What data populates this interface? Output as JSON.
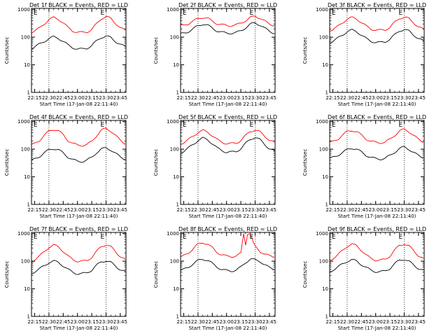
{
  "figure": {
    "colors": {
      "events": "#000000",
      "lld": "#ff0000",
      "axes": "#000000",
      "background": "#ffffff"
    },
    "panel_layout": "3x3 grid",
    "common": {
      "ylabel": "Counts/sec",
      "xlabel": "Start Time (17-Jan-08 22:11:40)",
      "xticks": [
        "22:15",
        "22:30",
        "22:45",
        "23:00",
        "23:15",
        "23:30",
        "23:45"
      ],
      "yticks": [
        "1",
        "10",
        "100",
        "1000"
      ],
      "xlim": [
        "22:11:40",
        "23:51:00"
      ],
      "ylim": [
        1,
        1100
      ],
      "yscale": "log",
      "dotted_vertical_lines": [
        "22:30",
        "23:30"
      ],
      "markers": [
        "E",
        "E"
      ]
    }
  },
  "chart_data": [
    {
      "type": "line",
      "panel": "1f",
      "title": "Det 1f BLACK = Events, RED = LLD",
      "series": [
        {
          "name": "BLACK = Events",
          "color": "#000000",
          "x": [
            "22:12",
            "22:15",
            "22:20",
            "22:25",
            "22:30",
            "22:35",
            "22:40",
            "22:45",
            "22:50",
            "22:55",
            "23:00",
            "23:05",
            "23:10",
            "23:15",
            "23:20",
            "23:25",
            "23:30",
            "23:35",
            "23:40",
            "23:45",
            "23:50"
          ],
          "values": [
            38,
            45,
            55,
            70,
            90,
            102,
            92,
            70,
            52,
            42,
            37,
            37,
            40,
            50,
            72,
            98,
            110,
            95,
            70,
            55,
            45
          ]
        },
        {
          "name": "RED = LLD",
          "color": "#ff0000",
          "x": [
            "22:12",
            "22:15",
            "22:20",
            "22:25",
            "22:30",
            "22:35",
            "22:40",
            "22:45",
            "22:50",
            "22:55",
            "23:00",
            "23:05",
            "23:10",
            "23:15",
            "23:20",
            "23:25",
            "23:30",
            "23:35",
            "23:40",
            "23:45",
            "23:50"
          ],
          "values": [
            155,
            170,
            210,
            300,
            440,
            510,
            450,
            330,
            220,
            170,
            150,
            148,
            155,
            190,
            300,
            470,
            560,
            470,
            320,
            220,
            175
          ]
        }
      ]
    },
    {
      "type": "line",
      "panel": "2f",
      "title": "Det 2f BLACK = Events, RED = LLD",
      "series": [
        {
          "name": "BLACK = Events",
          "color": "#000000",
          "x": [
            "22:12",
            "22:15",
            "22:20",
            "22:25",
            "22:30",
            "22:35",
            "22:40",
            "22:45",
            "22:50",
            "22:55",
            "23:00",
            "23:05",
            "23:10",
            "23:15",
            "23:20",
            "23:25",
            "23:30",
            "23:35",
            "23:40",
            "23:45",
            "23:50"
          ],
          "values": [
            130,
            140,
            160,
            200,
            260,
            300,
            270,
            210,
            170,
            150,
            140,
            140,
            145,
            170,
            220,
            290,
            330,
            280,
            210,
            165,
            140
          ]
        },
        {
          "name": "RED = LLD",
          "color": "#ff0000",
          "x": [
            "22:12",
            "22:15",
            "22:20",
            "22:25",
            "22:30",
            "22:35",
            "22:40",
            "22:45",
            "22:50",
            "22:55",
            "23:00",
            "23:05",
            "23:10",
            "23:15",
            "23:20",
            "23:25",
            "23:30",
            "23:35",
            "23:40",
            "23:45",
            "23:50"
          ],
          "values": [
            260,
            270,
            310,
            380,
            470,
            520,
            480,
            380,
            310,
            280,
            265,
            265,
            275,
            320,
            400,
            510,
            570,
            500,
            380,
            300,
            270
          ]
        }
      ]
    },
    {
      "type": "line",
      "panel": "3f",
      "title": "Det 3f BLACK = Events, RED = LLD",
      "series": [
        {
          "name": "BLACK = Events",
          "color": "#000000",
          "x": [
            "22:12",
            "22:15",
            "22:20",
            "22:25",
            "22:30",
            "22:35",
            "22:40",
            "22:45",
            "22:50",
            "22:55",
            "23:00",
            "23:05",
            "23:10",
            "23:15",
            "23:20",
            "23:25",
            "23:30",
            "23:35",
            "23:40",
            "23:45",
            "23:50"
          ],
          "values": [
            65,
            72,
            90,
            120,
            160,
            180,
            160,
            120,
            88,
            72,
            65,
            64,
            68,
            85,
            120,
            170,
            190,
            165,
            120,
            90,
            72
          ]
        },
        {
          "name": "RED = LLD",
          "color": "#ff0000",
          "x": [
            "22:12",
            "22:15",
            "22:20",
            "22:25",
            "22:30",
            "22:35",
            "22:40",
            "22:45",
            "22:50",
            "22:55",
            "23:00",
            "23:05",
            "23:10",
            "23:15",
            "23:20",
            "23:25",
            "23:30",
            "23:35",
            "23:40",
            "23:45",
            "23:50"
          ],
          "values": [
            180,
            190,
            240,
            330,
            460,
            510,
            460,
            340,
            250,
            200,
            180,
            178,
            185,
            230,
            340,
            480,
            540,
            460,
            330,
            240,
            190
          ]
        }
      ]
    },
    {
      "type": "line",
      "panel": "4f",
      "title": "Det 4f BLACK = Events, RED = LLD",
      "series": [
        {
          "name": "BLACK = Events",
          "color": "#000000",
          "x": [
            "22:12",
            "22:15",
            "22:20",
            "22:25",
            "22:30",
            "22:35",
            "22:40",
            "22:45",
            "22:50",
            "22:55",
            "23:00",
            "23:05",
            "23:10",
            "23:15",
            "23:20",
            "23:25",
            "23:30",
            "23:35",
            "23:40",
            "23:45",
            "23:50"
          ],
          "values": [
            38,
            44,
            55,
            72,
            95,
            105,
            95,
            72,
            52,
            42,
            36,
            36,
            40,
            50,
            75,
            100,
            110,
            95,
            70,
            52,
            44
          ]
        },
        {
          "name": "RED = LLD",
          "color": "#ff0000",
          "x": [
            "22:12",
            "22:15",
            "22:20",
            "22:25",
            "22:30",
            "22:35",
            "22:40",
            "22:45",
            "22:50",
            "22:55",
            "23:00",
            "23:05",
            "23:10",
            "23:15",
            "23:20",
            "23:25",
            "23:30",
            "23:35",
            "23:40",
            "23:45",
            "23:50"
          ],
          "values": [
            140,
            160,
            210,
            310,
            450,
            520,
            460,
            330,
            210,
            160,
            140,
            138,
            145,
            190,
            310,
            480,
            560,
            460,
            310,
            210,
            160
          ]
        }
      ]
    },
    {
      "type": "line",
      "panel": "5f",
      "title": "Det 5f BLACK = Events, RED = LLD",
      "series": [
        {
          "name": "BLACK = Events",
          "color": "#000000",
          "x": [
            "22:12",
            "22:15",
            "22:20",
            "22:25",
            "22:30",
            "22:35",
            "22:40",
            "22:45",
            "22:50",
            "22:55",
            "23:00",
            "23:05",
            "23:10",
            "23:15",
            "23:20",
            "23:25",
            "23:30",
            "23:35",
            "23:40",
            "23:45",
            "23:50"
          ],
          "values": [
            75,
            85,
            110,
            150,
            210,
            250,
            220,
            160,
            110,
            90,
            78,
            78,
            82,
            105,
            160,
            230,
            270,
            220,
            150,
            105,
            85
          ]
        },
        {
          "name": "RED = LLD",
          "color": "#ff0000",
          "x": [
            "22:12",
            "22:15",
            "22:20",
            "22:25",
            "22:30",
            "22:35",
            "22:40",
            "22:45",
            "22:50",
            "22:55",
            "23:00",
            "23:05",
            "23:10",
            "23:15",
            "23:20",
            "23:25",
            "23:30",
            "23:35",
            "23:40",
            "23:45",
            "23:50"
          ],
          "values": [
            160,
            175,
            220,
            300,
            410,
            470,
            420,
            310,
            220,
            180,
            160,
            158,
            165,
            210,
            310,
            440,
            500,
            420,
            300,
            215,
            175
          ]
        }
      ]
    },
    {
      "type": "line",
      "panel": "6f",
      "title": "Det 6f BLACK = Events, RED = LLD",
      "series": [
        {
          "name": "BLACK = Events",
          "color": "#000000",
          "x": [
            "22:12",
            "22:15",
            "22:20",
            "22:25",
            "22:30",
            "22:35",
            "22:40",
            "22:45",
            "22:50",
            "22:55",
            "23:00",
            "23:05",
            "23:10",
            "23:15",
            "23:20",
            "23:25",
            "23:30",
            "23:35",
            "23:40",
            "23:45",
            "23:50"
          ],
          "values": [
            45,
            50,
            60,
            75,
            95,
            110,
            100,
            78,
            60,
            50,
            45,
            44,
            47,
            58,
            78,
            105,
            120,
            100,
            75,
            58,
            50
          ]
        },
        {
          "name": "RED = LLD",
          "color": "#ff0000",
          "x": [
            "22:12",
            "22:15",
            "22:20",
            "22:25",
            "22:30",
            "22:35",
            "22:40",
            "22:45",
            "22:50",
            "22:55",
            "23:00",
            "23:05",
            "23:10",
            "23:15",
            "23:20",
            "23:25",
            "23:30",
            "23:35",
            "23:40",
            "23:45",
            "23:50"
          ],
          "values": [
            175,
            185,
            230,
            320,
            430,
            480,
            430,
            320,
            235,
            195,
            175,
            172,
            180,
            225,
            320,
            450,
            520,
            440,
            310,
            225,
            185
          ]
        }
      ]
    },
    {
      "type": "line",
      "panel": "7f",
      "title": "Det 7f BLACK = Events, RED = LLD",
      "series": [
        {
          "name": "BLACK = Events",
          "color": "#000000",
          "x": [
            "22:12",
            "22:15",
            "22:20",
            "22:25",
            "22:30",
            "22:35",
            "22:40",
            "22:45",
            "22:50",
            "22:55",
            "23:00",
            "23:05",
            "23:10",
            "23:15",
            "23:20",
            "23:25",
            "23:30",
            "23:35",
            "23:40",
            "23:45",
            "23:50"
          ],
          "values": [
            36,
            42,
            52,
            68,
            90,
            100,
            90,
            68,
            50,
            40,
            35,
            35,
            38,
            48,
            70,
            95,
            105,
            90,
            66,
            50,
            42
          ]
        },
        {
          "name": "RED = LLD",
          "color": "#ff0000",
          "x": [
            "22:12",
            "22:15",
            "22:20",
            "22:25",
            "22:30",
            "22:35",
            "22:40",
            "22:45",
            "22:50",
            "22:55",
            "23:00",
            "23:05",
            "23:10",
            "23:15",
            "23:20",
            "23:25",
            "23:30",
            "23:35",
            "23:40",
            "23:45",
            "23:50"
          ],
          "values": [
            100,
            115,
            150,
            220,
            320,
            380,
            330,
            230,
            150,
            115,
            100,
            98,
            105,
            140,
            220,
            340,
            400,
            330,
            220,
            150,
            115
          ]
        }
      ]
    },
    {
      "type": "line",
      "panel": "8f",
      "title": "Det 8f BLACK = Events, RED = LLD",
      "series": [
        {
          "name": "BLACK = Events",
          "color": "#000000",
          "x": [
            "22:12",
            "22:15",
            "22:20",
            "22:25",
            "22:30",
            "22:35",
            "22:40",
            "22:45",
            "22:50",
            "22:55",
            "23:00",
            "23:05",
            "23:10",
            "23:15",
            "23:20",
            "23:25",
            "23:30",
            "23:35",
            "23:40",
            "23:45",
            "23:50"
          ],
          "values": [
            45,
            50,
            62,
            80,
            105,
            120,
            108,
            82,
            62,
            50,
            45,
            44,
            48,
            60,
            90,
            120,
            110,
            100,
            75,
            58,
            50
          ]
        },
        {
          "name": "RED = LLD",
          "color": "#ff0000",
          "x": [
            "22:12",
            "22:15",
            "22:20",
            "22:25",
            "22:30",
            "22:35",
            "22:40",
            "22:45",
            "22:50",
            "22:55",
            "23:00",
            "23:05",
            "23:10",
            "23:15",
            "23:18",
            "23:20",
            "23:22",
            "23:25",
            "23:28",
            "23:30",
            "23:35",
            "23:40",
            "23:45",
            "23:50"
          ],
          "values": [
            140,
            155,
            200,
            290,
            410,
            470,
            420,
            300,
            210,
            170,
            150,
            148,
            155,
            190,
            1000,
            400,
            1000,
            1000,
            450,
            340,
            230,
            180,
            155,
            145
          ]
        }
      ]
    },
    {
      "type": "line",
      "panel": "9f",
      "title": "Det 9f BLACK = Events, RED = LLD",
      "series": [
        {
          "name": "BLACK = Events",
          "color": "#000000",
          "x": [
            "22:12",
            "22:15",
            "22:20",
            "22:25",
            "22:30",
            "22:35",
            "22:40",
            "22:45",
            "22:50",
            "22:55",
            "23:00",
            "23:05",
            "23:10",
            "23:15",
            "23:20",
            "23:25",
            "23:30",
            "23:35",
            "23:40",
            "23:45",
            "23:50"
          ],
          "values": [
            42,
            48,
            60,
            78,
            100,
            112,
            100,
            76,
            58,
            47,
            42,
            41,
            44,
            55,
            80,
            108,
            118,
            98,
            72,
            55,
            47
          ]
        },
        {
          "name": "RED = LLD",
          "color": "#ff0000",
          "x": [
            "22:12",
            "22:15",
            "22:20",
            "22:25",
            "22:30",
            "22:35",
            "22:40",
            "22:45",
            "22:50",
            "22:55",
            "23:00",
            "23:05",
            "23:10",
            "23:15",
            "23:20",
            "23:25",
            "23:30",
            "23:35",
            "23:40",
            "23:45",
            "23:50"
          ],
          "values": [
            110,
            125,
            165,
            240,
            350,
            410,
            360,
            250,
            165,
            125,
            110,
            108,
            115,
            155,
            250,
            370,
            430,
            350,
            235,
            160,
            125
          ]
        }
      ]
    }
  ]
}
